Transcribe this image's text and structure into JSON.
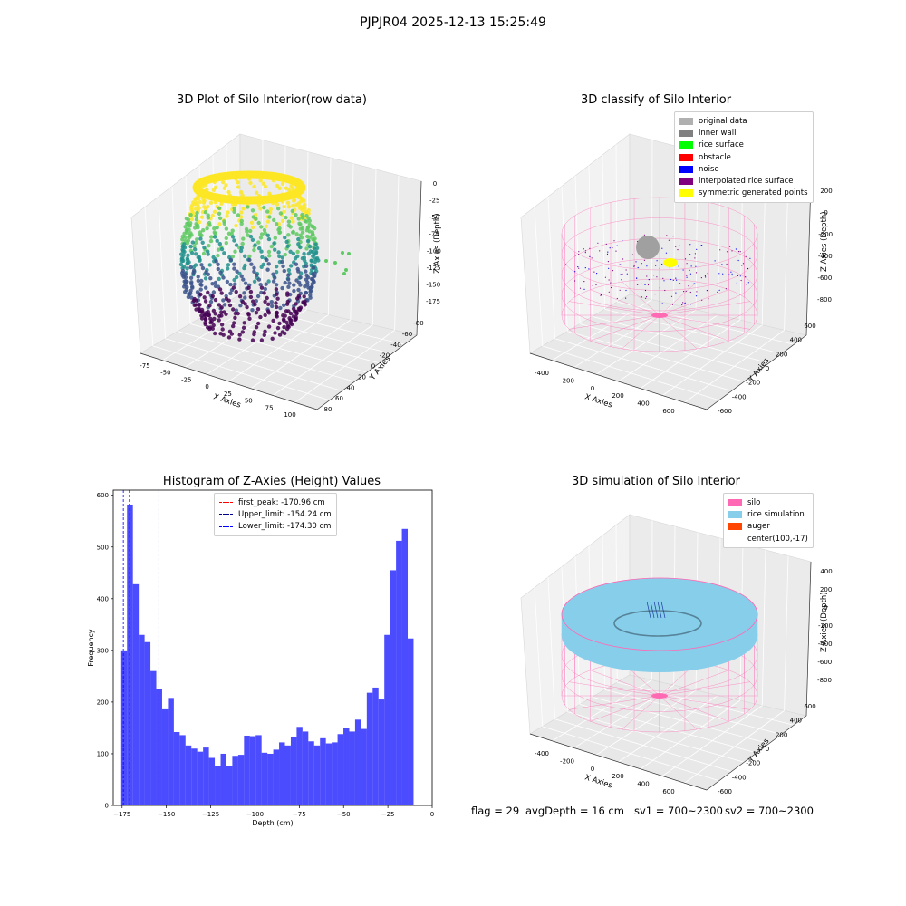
{
  "suptitle": "PJPJR04 2025-12-13 15:25:49",
  "panel1": {
    "title": "3D Plot of Silo Interior(row data)",
    "xlabel": "X Axies",
    "ylabel": "Y Axies",
    "zlabel": "Z Axies (Depth)",
    "xticks": [
      "-75",
      "-50",
      "-25",
      "0",
      "25",
      "50",
      "75",
      "100"
    ],
    "yticks": [
      "-80",
      "-60",
      "-40",
      "-20",
      "0",
      "20",
      "40",
      "60",
      "80"
    ],
    "zticks": [
      "0",
      "-25",
      "-50",
      "-75",
      "-100",
      "-125",
      "-150",
      "-175"
    ],
    "colormap": [
      "#440154",
      "#3b528b",
      "#21918c",
      "#5ec962",
      "#fde725"
    ]
  },
  "panel2": {
    "title": "3D classify of Silo Interior",
    "xlabel": "X Axies",
    "ylabel": "Y Axies",
    "zlabel": "Z Axies (Depth)",
    "xticks": [
      "-400",
      "-200",
      "0",
      "200",
      "400",
      "600"
    ],
    "yticks": [
      "-600",
      "-400",
      "-200",
      "0",
      "200",
      "400",
      "600"
    ],
    "zticks": [
      "200",
      "0",
      "-200",
      "-400",
      "-600",
      "-800"
    ],
    "legend": [
      {
        "label": "original data",
        "color": "#b0b0b0"
      },
      {
        "label": "inner wall",
        "color": "#808080"
      },
      {
        "label": "rice surface",
        "color": "#00ff00"
      },
      {
        "label": "obstacle",
        "color": "#ff0000"
      },
      {
        "label": "noise",
        "color": "#0000ff"
      },
      {
        "label": "interpolated rice surface",
        "color": "#800080"
      },
      {
        "label": "symmetric generated points",
        "color": "#ffff00"
      }
    ],
    "silo_color": "#ff69b4"
  },
  "panel4": {
    "title": "3D simulation of Silo Interior",
    "xlabel": "X Axies",
    "ylabel": "Y Axies",
    "zlabel": "Z Axies (Depth)",
    "xticks": [
      "-400",
      "-200",
      "0",
      "200",
      "400",
      "600"
    ],
    "yticks": [
      "-600",
      "-400",
      "-200",
      "0",
      "200",
      "400",
      "600"
    ],
    "zticks": [
      "400",
      "200",
      "0",
      "-200",
      "-400",
      "-600",
      "-800"
    ],
    "legend": [
      {
        "label": "silo",
        "color": "#ff69b4"
      },
      {
        "label": "rice simulation",
        "color": "#87ceeb"
      },
      {
        "label": "auger",
        "color": "#ff4500"
      },
      {
        "label": "center(100,-17)",
        "color": ""
      }
    ]
  },
  "footer": {
    "flag": "flag = 29",
    "avg": "avgDepth = 16 cm",
    "sv1": "sv1 = 700~2300",
    "sv2": "sv2 = 700~2300"
  },
  "chart_data": {
    "type": "bar",
    "title": "Histogram of Z-Axies (Height) Values",
    "xlabel": "Depth (cm)",
    "ylabel": "Frequency",
    "xlim": [
      -180,
      0
    ],
    "ylim": [
      0,
      610
    ],
    "xticks": [
      -175,
      -150,
      -125,
      -100,
      -75,
      -50,
      -25,
      0
    ],
    "yticks": [
      0,
      100,
      200,
      300,
      400,
      500,
      600
    ],
    "bin_start": -175.5,
    "bin_width": 3.3,
    "values": [
      300,
      582,
      428,
      330,
      316,
      260,
      226,
      186,
      208,
      142,
      136,
      116,
      110,
      104,
      112,
      92,
      76,
      100,
      76,
      96,
      98,
      135,
      134,
      136,
      102,
      100,
      108,
      122,
      116,
      132,
      152,
      143,
      124,
      116,
      130,
      120,
      122,
      138,
      150,
      143,
      166,
      148,
      218,
      228,
      205,
      330,
      455,
      512,
      535,
      323
    ],
    "bar_color": "#0000ff",
    "bar_alpha": 0.7,
    "lines": [
      {
        "label": "first_peak: -170.96 cm",
        "x": -170.96,
        "color": "#ff0000"
      },
      {
        "label": "Upper_limit: -154.24 cm",
        "x": -154.24,
        "color": "#00008b"
      },
      {
        "label": "Lower_limit: -174.30 cm",
        "x": -174.3,
        "color": "#0000ff"
      }
    ]
  }
}
